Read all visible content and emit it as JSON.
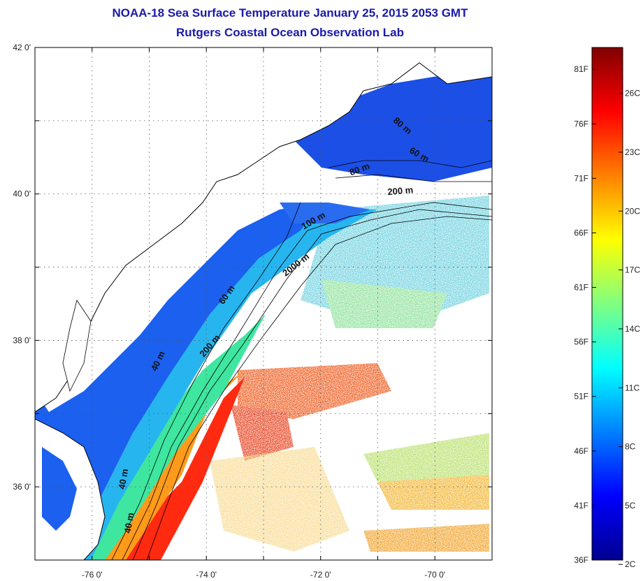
{
  "title": "NOAA-18 Sea Surface Temperature January 25, 2015 2053 GMT",
  "subtitle": "Rutgers Coastal Ocean Observation Lab",
  "map": {
    "lon_range": [
      -77,
      -69
    ],
    "lat_range": [
      35,
      42
    ],
    "lon_ticks": [
      {
        "value": -76,
        "label": "-76 0'"
      },
      {
        "value": -74,
        "label": "-74 0'"
      },
      {
        "value": -72,
        "label": "-72 0'"
      },
      {
        "value": -70,
        "label": "-70 0'"
      }
    ],
    "lat_ticks": [
      {
        "value": 42,
        "label": "42 0'"
      },
      {
        "value": 40,
        "label": "40 0'"
      },
      {
        "value": 38,
        "label": "38 0'"
      },
      {
        "value": 36,
        "label": "36 0'"
      }
    ],
    "contour_labels": [
      {
        "text": "80 m",
        "lon": -70.6,
        "lat": 40.9,
        "rot": 40
      },
      {
        "text": "60 m",
        "lon": -70.3,
        "lat": 40.5,
        "rot": 30
      },
      {
        "text": "80 m",
        "lon": -71.3,
        "lat": 40.3,
        "rot": -20
      },
      {
        "text": "200 m",
        "lon": -70.6,
        "lat": 40.0,
        "rot": -5
      },
      {
        "text": "100 m",
        "lon": -72.1,
        "lat": 39.6,
        "rot": -30
      },
      {
        "text": "2000 m",
        "lon": -72.4,
        "lat": 39.0,
        "rot": -38
      },
      {
        "text": "60 m",
        "lon": -73.6,
        "lat": 38.6,
        "rot": -55
      },
      {
        "text": "200 m",
        "lon": -73.9,
        "lat": 37.9,
        "rot": -50
      },
      {
        "text": "40 m",
        "lon": -74.8,
        "lat": 37.7,
        "rot": -65
      },
      {
        "text": "40 m",
        "lon": -75.3,
        "lat": 35.5,
        "rot": -80
      },
      {
        "text": "40 m",
        "lon": -75.4,
        "lat": 36.1,
        "rot": -80
      }
    ]
  },
  "colorbar": {
    "fahrenheit_labels": [
      "81F",
      "76F",
      "71F",
      "66F",
      "61F",
      "56F",
      "51F",
      "46F",
      "41F",
      "36F"
    ],
    "celsius_labels": [
      "26C",
      "23C",
      "20C",
      "17C",
      "14C",
      "11C",
      "8C",
      "5C",
      "2C"
    ],
    "f_values": [
      81,
      76,
      71,
      66,
      61,
      56,
      51,
      46,
      41,
      36
    ],
    "c_values": [
      26,
      23,
      20,
      17,
      14,
      11,
      8,
      5,
      2
    ],
    "range_f": [
      36,
      83
    ],
    "colors": [
      "#00008f",
      "#0000ff",
      "#0080ff",
      "#00ffff",
      "#80ff80",
      "#ffff00",
      "#ff8000",
      "#ff0000",
      "#800000"
    ]
  }
}
